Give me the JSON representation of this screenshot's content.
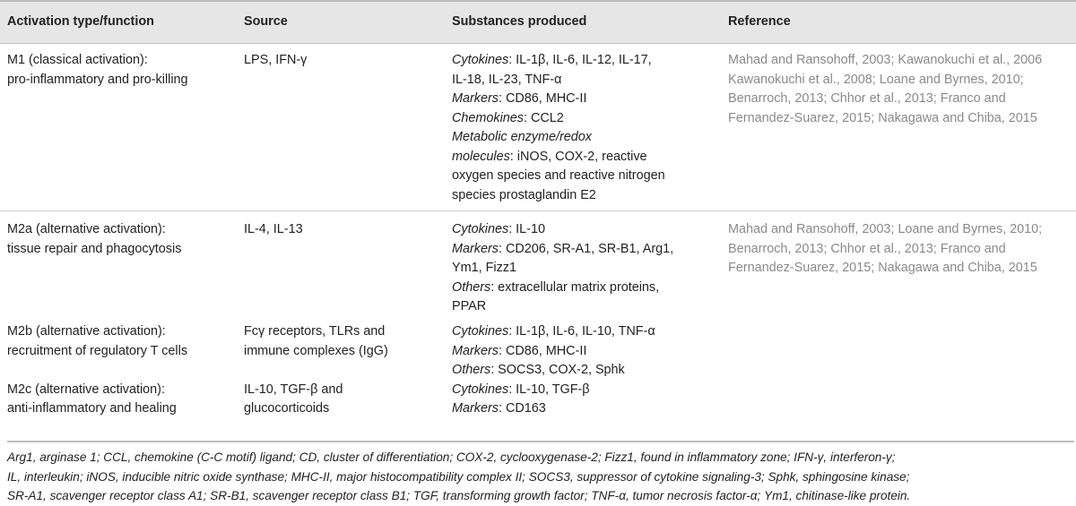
{
  "headers": [
    "Activation type/function",
    "Source",
    "Substances produced",
    "Reference"
  ],
  "rows": [
    {
      "type": [
        "M1 (classical activation):",
        "pro-inflammatory and pro-killing"
      ],
      "source": [
        "LPS, IFN-γ"
      ],
      "substances": [
        [
          {
            "i": "Cytokines"
          },
          ": IL-1β, IL-6, IL-12, IL-17,"
        ],
        [
          "IL-18, IL-23, TNF-α"
        ],
        [
          {
            "i": "Markers"
          },
          ": CD86, MHC-II"
        ],
        [
          {
            "i": "Chemokines"
          },
          ": CCL2"
        ],
        [
          {
            "i": "Metabolic enzyme/redox"
          }
        ],
        [
          {
            "i": "molecules"
          },
          ": iNOS, COX-2, reactive"
        ],
        [
          "oxygen species and reactive nitrogen"
        ],
        [
          "species prostaglandin E2"
        ]
      ],
      "reference": [
        "Mahad and Ransohoff, 2003; Kawanokuchi et al., 2006",
        "Kawanokuchi et al., 2008; Loane and Byrnes, 2010;",
        "Benarroch, 2013; Chhor et al., 2013; Franco and",
        "Fernandez-Suarez, 2015; Nakagawa and Chiba, 2015"
      ]
    },
    {
      "type": [
        "M2a (alternative activation):",
        "tissue repair and phagocytosis"
      ],
      "source": [
        "IL-4, IL-13"
      ],
      "substances": [
        [
          {
            "i": "Cytokines"
          },
          ": IL-10"
        ],
        [
          {
            "i": "Markers"
          },
          ": CD206, SR-A1, SR-B1, Arg1,"
        ],
        [
          "Ym1, Fizz1"
        ],
        [
          {
            "i": "Others"
          },
          ": extracellular matrix proteins,"
        ],
        [
          "PPAR"
        ]
      ],
      "reference": [
        "Mahad and Ransohoff, 2003; Loane and Byrnes, 2010;",
        "Benarroch, 2013; Chhor et al., 2013; Franco and",
        "Fernandez-Suarez, 2015; Nakagawa and Chiba, 2015"
      ]
    },
    {
      "type": [
        "M2b (alternative activation):",
        "recruitment of regulatory T cells"
      ],
      "source": [
        "Fcγ receptors, TLRs and",
        "immune complexes (IgG)"
      ],
      "substances": [
        [
          {
            "i": "Cytokines"
          },
          ": IL-1β, IL-6, IL-10, TNF-α"
        ],
        [
          {
            "i": "Markers"
          },
          ": CD86, MHC-II"
        ],
        [
          {
            "i": "Others"
          },
          ": SOCS3, COX-2, Sphk"
        ]
      ],
      "reference": []
    },
    {
      "type": [
        "M2c (alternative activation):",
        "anti-inflammatory and healing"
      ],
      "source": [
        "IL-10, TGF-β and",
        "glucocorticoids"
      ],
      "substances": [
        [
          {
            "i": "Cytokines"
          },
          ": IL-10, TGF-β"
        ],
        [
          {
            "i": "Markers"
          },
          ": CD163"
        ]
      ],
      "reference": []
    }
  ],
  "footnote": [
    "Arg1, arginase 1; CCL, chemokine (C-C motif) ligand; CD, cluster of differentiation; COX-2, cyclooxygenase-2; Fizz1, found in inflammatory zone; IFN-γ, interferon-γ;",
    "IL, interleukin; iNOS, inducible nitric oxide synthase; MHC-II, major histocompatibility complex II; SOCS3, suppressor of cytokine signaling-3; Sphk, sphingosine kinase;",
    "SR-A1, scavenger receptor class A1; SR-B1, scavenger receptor class B1; TGF, transforming growth factor; TNF-α, tumor necrosis factor-α; Ym1, chitinase-like protein."
  ]
}
